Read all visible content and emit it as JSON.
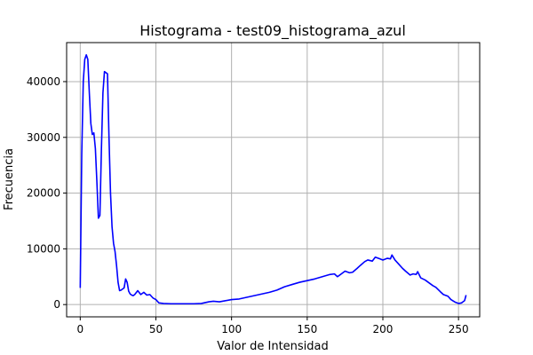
{
  "chart_data": {
    "type": "line",
    "title": "Histograma - test09_histograma_azul",
    "xlabel": "Valor de Intensidad",
    "ylabel": "Frecuencia",
    "xlim": [
      -9,
      264
    ],
    "ylim": [
      -2200,
      47000
    ],
    "xticks": [
      0,
      50,
      100,
      150,
      200,
      250
    ],
    "yticks": [
      0,
      10000,
      20000,
      30000,
      40000
    ],
    "grid": true,
    "series_color": "#0000ff",
    "series": [
      {
        "x": [
          0,
          1,
          2,
          3,
          4,
          5,
          6,
          7,
          8,
          9,
          10,
          11,
          12,
          13,
          14,
          15,
          16,
          17,
          18,
          19,
          20,
          21,
          22,
          23,
          24,
          25,
          26,
          27,
          28,
          29,
          30,
          31,
          32,
          33,
          34,
          35,
          36,
          38,
          40,
          42,
          44,
          46,
          48,
          50,
          52,
          55,
          60,
          65,
          70,
          75,
          80,
          85,
          88,
          92,
          96,
          100,
          105,
          110,
          115,
          120,
          125,
          130,
          135,
          140,
          145,
          150,
          155,
          160,
          165,
          168,
          170,
          175,
          178,
          180,
          183,
          185,
          188,
          190,
          193,
          195,
          198,
          200,
          203,
          205,
          206,
          208,
          210,
          213,
          215,
          218,
          220,
          222,
          223,
          225,
          228,
          230,
          233,
          235,
          238,
          240,
          243,
          245,
          248,
          250,
          252,
          253,
          254,
          255
        ],
        "y": [
          3000,
          27000,
          40000,
          44000,
          44800,
          44000,
          38000,
          32500,
          30500,
          30800,
          28000,
          22000,
          15500,
          16000,
          28000,
          38000,
          41800,
          41600,
          41400,
          30000,
          20000,
          14000,
          11000,
          9500,
          7000,
          4000,
          2500,
          2600,
          2800,
          3000,
          4600,
          4000,
          2400,
          1900,
          1700,
          1600,
          1800,
          2500,
          1800,
          2200,
          1700,
          1800,
          1200,
          900,
          300,
          200,
          150,
          150,
          150,
          150,
          200,
          500,
          600,
          500,
          700,
          900,
          1000,
          1300,
          1600,
          1900,
          2200,
          2600,
          3200,
          3600,
          4000,
          4300,
          4600,
          5000,
          5400,
          5500,
          5000,
          6000,
          5700,
          5800,
          6500,
          7000,
          7700,
          8000,
          7800,
          8500,
          8200,
          8000,
          8300,
          8200,
          8900,
          8000,
          7400,
          6500,
          6000,
          5300,
          5500,
          5400,
          5900,
          4800,
          4400,
          4000,
          3400,
          3100,
          2300,
          1800,
          1500,
          900,
          400,
          200,
          300,
          500,
          700,
          1700
        ]
      }
    ]
  }
}
